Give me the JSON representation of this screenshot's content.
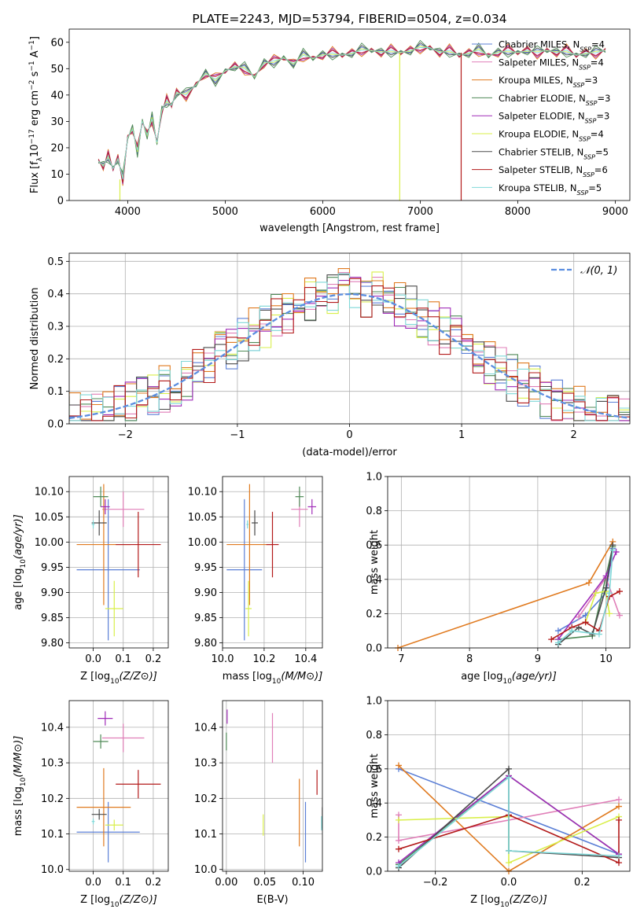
{
  "figure": {
    "title": "PLATE=2243, MJD=53794, FIBERID=0504, z=0.034"
  },
  "models": [
    {
      "name": "Chabrier MILES",
      "nssp": "4",
      "color": "#5b7fd6"
    },
    {
      "name": "Salpeter MILES",
      "nssp": "4",
      "color": "#e07fb8"
    },
    {
      "name": "Kroupa MILES",
      "nssp": "3",
      "color": "#e07a1f"
    },
    {
      "name": "Chabrier ELODIE",
      "nssp": "3",
      "color": "#4f8a57"
    },
    {
      "name": "Salpeter ELODIE",
      "nssp": "3",
      "color": "#a02cb8"
    },
    {
      "name": "Kroupa ELODIE",
      "nssp": "4",
      "color": "#d9ef4a"
    },
    {
      "name": "Chabrier STELIB",
      "nssp": "5",
      "color": "#4a4a4a"
    },
    {
      "name": "Salpeter STELIB",
      "nssp": "6",
      "color": "#b31a1a"
    },
    {
      "name": "Kroupa STELIB",
      "nssp": "5",
      "color": "#7fd8d8"
    }
  ],
  "chart_data": [
    {
      "id": "spectrum",
      "type": "line",
      "title": "PLATE=2243, MJD=53794, FIBERID=0504, z=0.034",
      "xlabel": "wavelength [Angstrom, rest frame]",
      "ylabel_parts": [
        "Flux [f",
        "λ",
        "10",
        "−17",
        " erg cm",
        "−2",
        " s",
        "−1",
        " A",
        "−1",
        "]"
      ],
      "xlim": [
        3400,
        9150
      ],
      "ylim": [
        0,
        65
      ],
      "xticks": [
        4000,
        5000,
        6000,
        7000,
        8000,
        9000
      ],
      "yticks": [
        0,
        10,
        20,
        30,
        40,
        50,
        60
      ],
      "grid": false,
      "legend": "right",
      "x": [
        3700,
        3750,
        3800,
        3850,
        3900,
        3950,
        4000,
        4050,
        4100,
        4150,
        4200,
        4250,
        4300,
        4350,
        4400,
        4450,
        4500,
        4600,
        4700,
        4800,
        4900,
        5000,
        5100,
        5200,
        5300,
        5400,
        5500,
        5600,
        5700,
        5800,
        5900,
        6000,
        6100,
        6200,
        6300,
        6400,
        6500,
        6600,
        6700,
        6800,
        6900,
        7000,
        7100,
        7200,
        7300,
        7400,
        7500,
        7600,
        7700,
        7800,
        7900,
        8000,
        8100,
        8200,
        8300,
        8400,
        8500,
        8600,
        8700,
        8800,
        8900
      ],
      "y": [
        15,
        13,
        17,
        12,
        16,
        8,
        24,
        27,
        19,
        30,
        25,
        31,
        22,
        34,
        38,
        36,
        41,
        40,
        44,
        48,
        46,
        49,
        51,
        50,
        47,
        52,
        53,
        54,
        52,
        55,
        54,
        55,
        56,
        55,
        56,
        57,
        57,
        56,
        57,
        56,
        57,
        58,
        58,
        56,
        57,
        55,
        56,
        57,
        55,
        56,
        57,
        56,
        57,
        56,
        57,
        56,
        57,
        55,
        56,
        56,
        57
      ],
      "drop_lines": [
        {
          "x": 3920,
          "y_to": 0
        },
        {
          "x": 6790,
          "y_to": 0
        },
        {
          "x": 7420,
          "y_to": 0
        }
      ]
    },
    {
      "id": "residuals",
      "type": "histogram",
      "xlabel": "(data-model)/error",
      "ylabel": "Normed distribution",
      "xlim": [
        -2.5,
        2.5
      ],
      "ylim": [
        0,
        0.525
      ],
      "xticks": [
        -2,
        -1,
        0,
        1,
        2
      ],
      "yticks": [
        0.0,
        0.1,
        0.2,
        0.3,
        0.4,
        0.5
      ],
      "grid": true,
      "legend": "top-right",
      "bin_width": 0.1,
      "gaussian_label": "𝒩(0, 1)",
      "gaussian_color": "#5b8ee0"
    },
    {
      "id": "age_vs_Z",
      "type": "scatter",
      "xlabel": "Z [log10(Z/Z⊙)]",
      "ylabel": "age  [log10(age/yr)]",
      "xlim": [
        -0.08,
        0.25
      ],
      "ylim": [
        9.79,
        10.13
      ],
      "xticks": [
        0.0,
        0.1,
        0.2
      ],
      "yticks": [
        9.8,
        9.85,
        9.9,
        9.95,
        10.0,
        10.05,
        10.1
      ],
      "grid": true,
      "points": [
        {
          "model": 0,
          "x": 0.05,
          "y": 9.945,
          "xerr": 0.105,
          "yerr": 0.14
        },
        {
          "model": 1,
          "x": 0.1,
          "y": 10.065,
          "xerr": 0.07,
          "yerr": 0.035
        },
        {
          "model": 2,
          "x": 0.035,
          "y": 9.995,
          "xerr": 0.09,
          "yerr": 0.12
        },
        {
          "model": 3,
          "x": 0.025,
          "y": 10.09,
          "xerr": 0.025,
          "yerr": 0.02
        },
        {
          "model": 4,
          "x": 0.04,
          "y": 10.07,
          "xerr": 0.015,
          "yerr": 0.015
        },
        {
          "model": 5,
          "x": 0.07,
          "y": 9.868,
          "xerr": 0.03,
          "yerr": 0.055
        },
        {
          "model": 6,
          "x": 0.02,
          "y": 10.038,
          "xerr": 0.025,
          "yerr": 0.025
        },
        {
          "model": 7,
          "x": 0.15,
          "y": 9.995,
          "xerr": 0.075,
          "yerr": 0.065
        },
        {
          "model": 8,
          "x": 0.0,
          "y": 10.035,
          "xerr": 0.005,
          "yerr": 0.008
        }
      ]
    },
    {
      "id": "age_vs_mass",
      "type": "scatter",
      "xlabel": "mass [log10(M/M⊙)]",
      "ylabel": "",
      "xlim": [
        10.0,
        10.48
      ],
      "ylim": [
        9.79,
        10.13
      ],
      "xticks": [
        10.0,
        10.2,
        10.4
      ],
      "yticks": [
        9.8,
        9.85,
        9.9,
        9.95,
        10.0,
        10.05,
        10.1
      ],
      "grid": true,
      "points": [
        {
          "model": 0,
          "x": 10.105,
          "y": 9.945,
          "xerr": 0.085,
          "yerr": 0.14
        },
        {
          "model": 1,
          "x": 10.37,
          "y": 10.065,
          "xerr": 0.04,
          "yerr": 0.035
        },
        {
          "model": 2,
          "x": 10.13,
          "y": 9.995,
          "xerr": 0.11,
          "yerr": 0.12
        },
        {
          "model": 3,
          "x": 10.37,
          "y": 10.09,
          "xerr": 0.02,
          "yerr": 0.02
        },
        {
          "model": 4,
          "x": 10.43,
          "y": 10.07,
          "xerr": 0.02,
          "yerr": 0.015
        },
        {
          "model": 5,
          "x": 10.125,
          "y": 9.868,
          "xerr": 0.015,
          "yerr": 0.055
        },
        {
          "model": 6,
          "x": 10.155,
          "y": 10.038,
          "xerr": 0.015,
          "yerr": 0.025
        },
        {
          "model": 7,
          "x": 10.24,
          "y": 9.995,
          "xerr": 0.03,
          "yerr": 0.065
        },
        {
          "model": 8,
          "x": 10.12,
          "y": 10.035,
          "xerr": 0.005,
          "yerr": 0.008
        }
      ]
    },
    {
      "id": "mass_weight_vs_age",
      "type": "line",
      "xlabel": "age  [log10(age/yr)]",
      "ylabel": "mass weight",
      "xlim": [
        6.8,
        10.35
      ],
      "ylim": [
        0,
        1.0
      ],
      "xticks": [
        7,
        8,
        9,
        10
      ],
      "yticks": [
        0.0,
        0.2,
        0.4,
        0.6,
        0.8,
        1.0
      ],
      "grid": true,
      "series": [
        {
          "model": 0,
          "x": [
            9.3,
            9.7,
            10.0,
            10.1
          ],
          "y": [
            0.1,
            0.19,
            0.32,
            0.58
          ]
        },
        {
          "model": 1,
          "x": [
            9.6,
            10.0,
            10.2
          ],
          "y": [
            0.18,
            0.41,
            0.19
          ]
        },
        {
          "model": 2,
          "x": [
            6.95,
            9.75,
            10.1
          ],
          "y": [
            0.0,
            0.38,
            0.62
          ]
        },
        {
          "model": 3,
          "x": [
            9.3,
            9.8,
            10.1
          ],
          "y": [
            0.05,
            0.07,
            0.59
          ]
        },
        {
          "model": 4,
          "x": [
            9.3,
            10.0,
            10.15
          ],
          "y": [
            0.05,
            0.42,
            0.56
          ]
        },
        {
          "model": 5,
          "x": [
            9.7,
            9.85,
            10.0,
            10.05
          ],
          "y": [
            0.15,
            0.32,
            0.33,
            0.2
          ]
        },
        {
          "model": 6,
          "x": [
            9.3,
            9.6,
            9.8,
            10.0,
            10.1
          ],
          "y": [
            0.02,
            0.12,
            0.08,
            0.35,
            0.6
          ]
        },
        {
          "model": 7,
          "x": [
            9.2,
            9.5,
            9.7,
            9.9,
            10.05,
            10.2
          ],
          "y": [
            0.05,
            0.12,
            0.15,
            0.1,
            0.3,
            0.33
          ]
        },
        {
          "model": 8,
          "x": [
            9.3,
            9.5,
            9.9,
            10.05,
            10.1
          ],
          "y": [
            0.03,
            0.1,
            0.08,
            0.32,
            0.57
          ]
        }
      ]
    },
    {
      "id": "mass_vs_Z",
      "type": "scatter",
      "xlabel": "Z [log10(Z/Z⊙)]",
      "ylabel": "mass [log10(M/M⊙)]",
      "xlim": [
        -0.08,
        0.25
      ],
      "ylim": [
        9.995,
        10.475
      ],
      "xticks": [
        0.0,
        0.1,
        0.2
      ],
      "yticks": [
        10.0,
        10.1,
        10.2,
        10.3,
        10.4
      ],
      "grid": true,
      "points": [
        {
          "model": 0,
          "x": 0.05,
          "y": 10.105,
          "xerr": 0.105,
          "yerr": 0.085
        },
        {
          "model": 1,
          "x": 0.1,
          "y": 10.37,
          "xerr": 0.07,
          "yerr": 0.04
        },
        {
          "model": 2,
          "x": 0.035,
          "y": 10.175,
          "xerr": 0.09,
          "yerr": 0.11
        },
        {
          "model": 3,
          "x": 0.025,
          "y": 10.36,
          "xerr": 0.025,
          "yerr": 0.02
        },
        {
          "model": 4,
          "x": 0.04,
          "y": 10.425,
          "xerr": 0.025,
          "yerr": 0.02
        },
        {
          "model": 5,
          "x": 0.07,
          "y": 10.125,
          "xerr": 0.03,
          "yerr": 0.015
        },
        {
          "model": 6,
          "x": 0.02,
          "y": 10.155,
          "xerr": 0.025,
          "yerr": 0.015
        },
        {
          "model": 7,
          "x": 0.15,
          "y": 10.24,
          "xerr": 0.075,
          "yerr": 0.04
        },
        {
          "model": 8,
          "x": 0.0,
          "y": 10.135,
          "xerr": 0.005,
          "yerr": 0.008
        }
      ]
    },
    {
      "id": "mass_vs_EBV",
      "type": "scatter",
      "xlabel": "E(B-V)",
      "ylabel": "",
      "xlim": [
        -0.005,
        0.125
      ],
      "ylim": [
        9.995,
        10.475
      ],
      "xticks": [
        0.0,
        0.05,
        0.1
      ],
      "yticks": [
        10.0,
        10.1,
        10.2,
        10.3,
        10.4
      ],
      "grid": true,
      "points": [
        {
          "model": 0,
          "x": 0.103,
          "y": 10.105,
          "xerr": 0,
          "yerr": 0.085
        },
        {
          "model": 1,
          "x": 0.06,
          "y": 10.37,
          "xerr": 0,
          "yerr": 0.07
        },
        {
          "model": 2,
          "x": 0.095,
          "y": 10.16,
          "xerr": 0,
          "yerr": 0.095
        },
        {
          "model": 3,
          "x": 0.0,
          "y": 10.36,
          "xerr": 0,
          "yerr": 0.025
        },
        {
          "model": 4,
          "x": 0.001,
          "y": 10.43,
          "xerr": 0,
          "yerr": 0.02
        },
        {
          "model": 5,
          "x": 0.048,
          "y": 10.125,
          "xerr": 0,
          "yerr": 0.03
        },
        {
          "model": 6,
          "x": 0.125,
          "y": 10.145,
          "xerr": 0,
          "yerr": 0.03
        },
        {
          "model": 7,
          "x": 0.118,
          "y": 10.245,
          "xerr": 0,
          "yerr": 0.035
        },
        {
          "model": 8,
          "x": 0.124,
          "y": 10.13,
          "xerr": 0,
          "yerr": 0.02
        }
      ]
    },
    {
      "id": "mass_weight_vs_Z",
      "type": "line",
      "xlabel": "Z [log10(Z/Z⊙)]",
      "ylabel": "mass weight",
      "xlim": [
        -0.33,
        0.33
      ],
      "ylim": [
        0,
        1.0
      ],
      "xticks": [
        -0.2,
        0.0,
        0.2
      ],
      "yticks": [
        0.0,
        0.2,
        0.4,
        0.6,
        0.8,
        1.0
      ],
      "grid": true,
      "series": [
        {
          "model": 0,
          "x": [
            -0.3,
            0.3
          ],
          "y": [
            0.6,
            0.1
          ]
        },
        {
          "model": 1,
          "x": [
            -0.3,
            -0.3,
            0.3
          ],
          "y": [
            0.33,
            0.18,
            0.42
          ]
        },
        {
          "model": 2,
          "x": [
            -0.3,
            0.0,
            0.3
          ],
          "y": [
            0.62,
            0.0,
            0.38
          ]
        },
        {
          "model": 3,
          "x": [
            -0.3,
            0.0,
            0.3
          ],
          "y": [
            0.04,
            0.56,
            0.1
          ]
        },
        {
          "model": 4,
          "x": [
            -0.3,
            0.0,
            0.3
          ],
          "y": [
            0.05,
            0.56,
            0.1
          ]
        },
        {
          "model": 5,
          "x": [
            -0.3,
            0.0,
            0.0,
            0.3
          ],
          "y": [
            0.3,
            0.32,
            0.05,
            0.32
          ]
        },
        {
          "model": 6,
          "x": [
            -0.3,
            0.0,
            0.0,
            0.3
          ],
          "y": [
            0.02,
            0.6,
            0.12,
            0.08
          ]
        },
        {
          "model": 7,
          "x": [
            -0.3,
            0.0,
            0.3,
            0.3
          ],
          "y": [
            0.13,
            0.33,
            0.05,
            0.3
          ]
        },
        {
          "model": 8,
          "x": [
            -0.3,
            0.0,
            0.0,
            0.3
          ],
          "y": [
            0.03,
            0.55,
            0.12,
            0.09
          ]
        }
      ]
    }
  ]
}
